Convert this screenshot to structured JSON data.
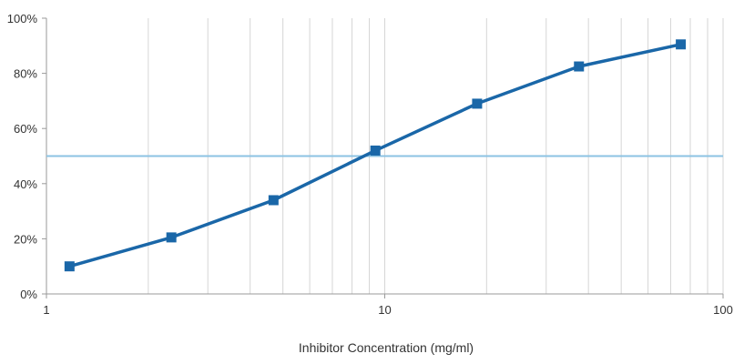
{
  "chart_data": {
    "type": "line",
    "title": "",
    "xlabel": "Inhibitor Concentration (mg/ml)",
    "ylabel": "",
    "x_scale": "log",
    "xlim": [
      1,
      100
    ],
    "ylim": [
      0,
      100
    ],
    "x_ticks": [
      1,
      10,
      100
    ],
    "x_tick_labels": [
      "1",
      "10",
      "100"
    ],
    "y_ticks": [
      0,
      20,
      40,
      60,
      80,
      100
    ],
    "y_tick_labels": [
      "0%",
      "20%",
      "40%",
      "60%",
      "80%",
      "100%"
    ],
    "grid": "vertical minor and major on x; none on y",
    "legend": "none",
    "series": [
      {
        "x": [
          1.17,
          2.34,
          4.69,
          9.38,
          18.75,
          37.5,
          75
        ],
        "y": [
          10,
          20.5,
          34,
          52,
          69,
          82.5,
          90.5
        ],
        "color": "#1a67a8",
        "marker": "square"
      }
    ],
    "reference_lines": [
      {
        "orientation": "horizontal",
        "y": 50,
        "color": "#8cc3e3"
      }
    ],
    "colors": {
      "grid": "#d6d6d6",
      "axis": "#9a9a9a",
      "text": "#333333"
    }
  }
}
